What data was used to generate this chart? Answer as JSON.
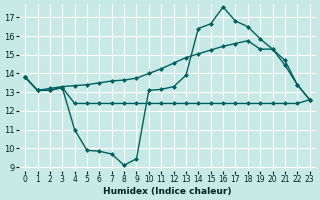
{
  "xlabel": "Humidex (Indice chaleur)",
  "bg_color": "#c8eae6",
  "grid_color": "#ffffff",
  "line_color": "#006060",
  "xlim_min": -0.5,
  "xlim_max": 23.5,
  "ylim_min": 8.8,
  "ylim_max": 17.7,
  "yticks": [
    9,
    10,
    11,
    12,
    13,
    14,
    15,
    16,
    17
  ],
  "xticks": [
    0,
    1,
    2,
    3,
    4,
    5,
    6,
    7,
    8,
    9,
    10,
    11,
    12,
    13,
    14,
    15,
    16,
    17,
    18,
    19,
    20,
    21,
    22,
    23
  ],
  "line_dip_x": [
    0,
    1,
    2,
    3,
    4,
    5,
    6,
    7,
    8,
    9,
    10,
    11,
    12,
    13,
    14,
    15,
    16,
    17,
    18,
    19,
    20,
    21,
    22,
    23
  ],
  "line_dip_y": [
    13.8,
    13.1,
    13.1,
    13.25,
    11.0,
    9.9,
    9.85,
    9.7,
    9.1,
    9.45,
    13.1,
    13.15,
    13.3,
    13.9,
    16.4,
    16.65,
    17.55,
    16.8,
    16.5,
    15.85,
    15.3,
    14.45,
    13.4,
    12.6
  ],
  "line_flat_x": [
    0,
    1,
    2,
    3,
    4,
    5,
    6,
    7,
    8,
    9,
    10,
    11,
    12,
    13,
    14,
    15,
    16,
    17,
    18,
    19,
    20,
    21,
    22,
    23
  ],
  "line_flat_y": [
    13.8,
    13.1,
    13.1,
    13.25,
    12.4,
    12.4,
    12.4,
    12.4,
    12.4,
    12.4,
    12.4,
    12.4,
    12.4,
    12.4,
    12.4,
    12.4,
    12.4,
    12.4,
    12.4,
    12.4,
    12.4,
    12.4,
    12.4,
    12.6
  ],
  "line_rise_x": [
    0,
    1,
    2,
    3,
    4,
    5,
    6,
    7,
    8,
    9,
    10,
    11,
    12,
    13,
    14,
    15,
    16,
    17,
    18,
    19,
    20,
    21,
    22,
    23
  ],
  "line_rise_y": [
    13.8,
    13.1,
    13.2,
    13.3,
    13.35,
    13.4,
    13.5,
    13.6,
    13.65,
    13.75,
    14.0,
    14.25,
    14.55,
    14.85,
    15.05,
    15.25,
    15.45,
    15.6,
    15.75,
    15.3,
    15.3,
    14.7,
    13.4,
    12.6
  ],
  "xlabel_fontsize": 6.5,
  "tick_fontsize": 5.5,
  "lw": 1.0,
  "ms": 2.5
}
